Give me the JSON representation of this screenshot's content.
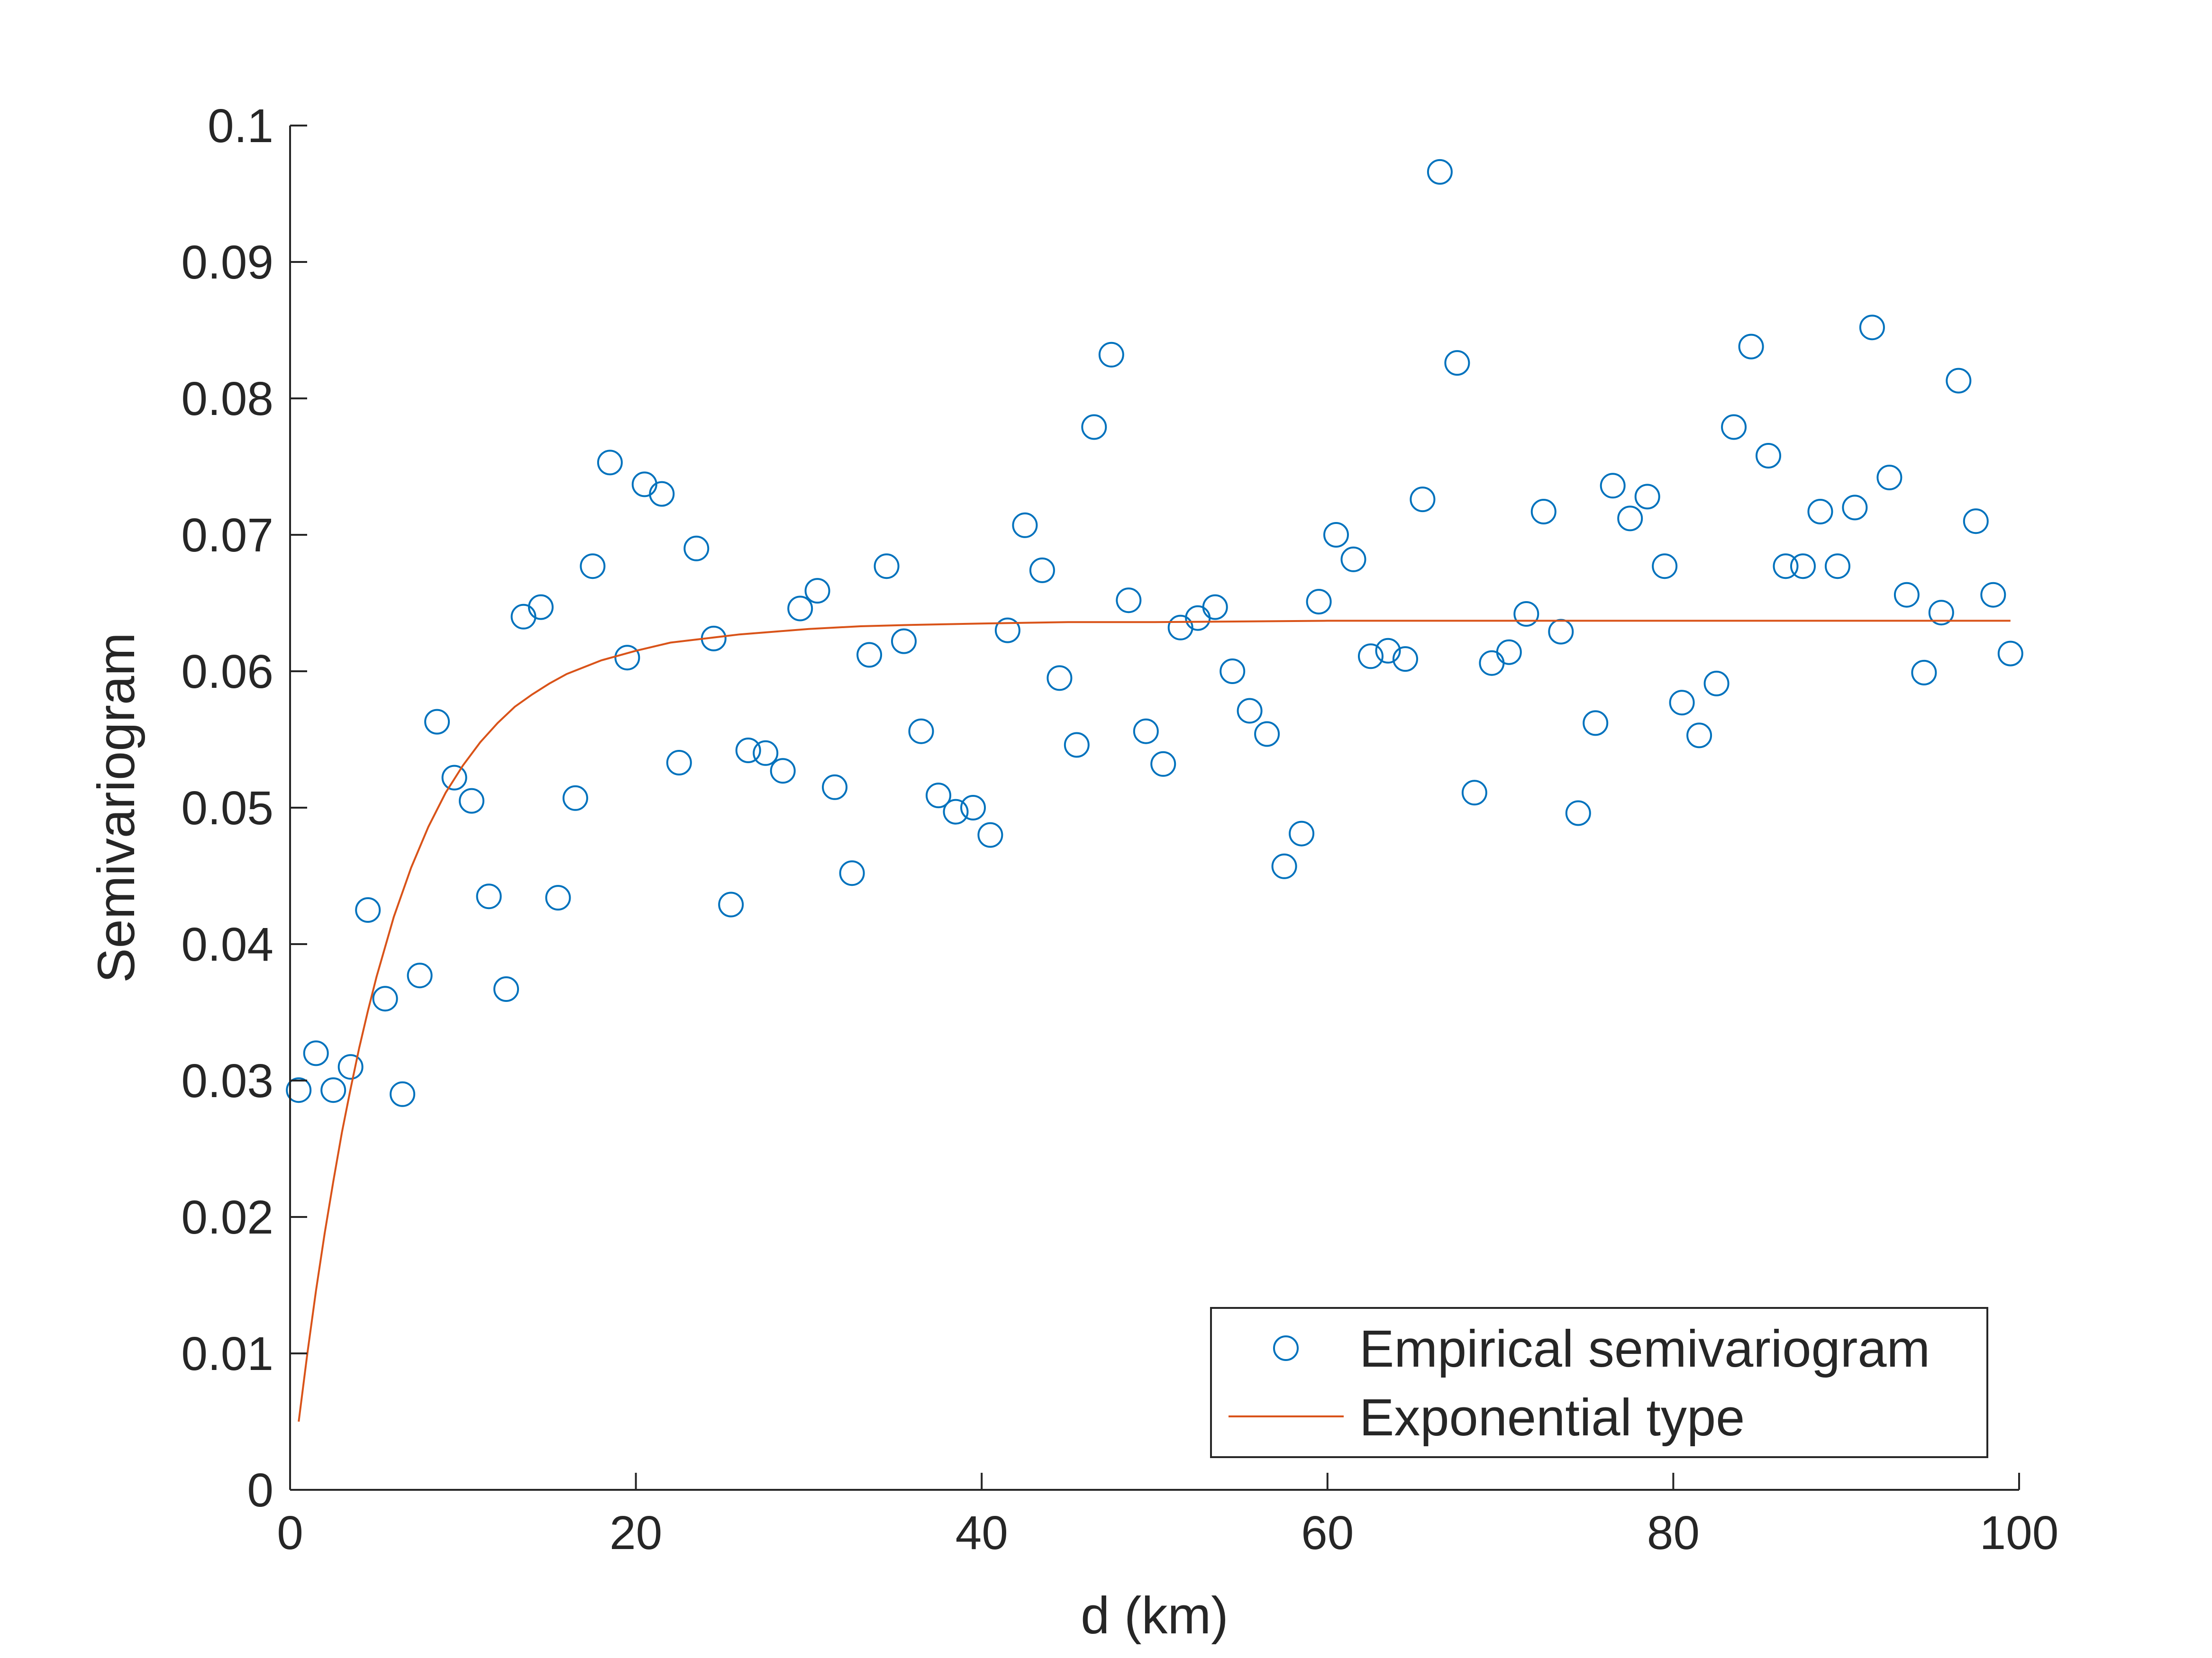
{
  "chart_data": {
    "type": "scatter",
    "title": "",
    "xlabel": "d (km)",
    "ylabel": "Semivariogram",
    "xlim": [
      0,
      100
    ],
    "ylim": [
      0,
      0.1
    ],
    "xticks": [
      "0",
      "20",
      "40",
      "60",
      "80",
      "100"
    ],
    "yticks": [
      "0",
      "0.01",
      "0.02",
      "0.03",
      "0.04",
      "0.05",
      "0.06",
      "0.07",
      "0.08",
      "0.09",
      "0.1"
    ],
    "grid": false,
    "legend_position": "bottom-right",
    "series": [
      {
        "name": "Empirical semivariogram",
        "kind": "scatter",
        "marker": "open-circle",
        "color": "#0072BD",
        "x": [
          0.5,
          1.5,
          2.5,
          3.5,
          4.5,
          5.5,
          6.5,
          7.5,
          8.5,
          9.5,
          10.5,
          11.5,
          12.5,
          13.5,
          14.5,
          15.5,
          16.5,
          17.5,
          18.5,
          19.5,
          20.5,
          21.5,
          22.5,
          23.5,
          24.5,
          25.5,
          26.5,
          27.5,
          28.5,
          29.5,
          30.5,
          31.5,
          32.5,
          33.5,
          34.5,
          35.5,
          36.5,
          37.5,
          38.5,
          39.5,
          40.5,
          41.5,
          42.5,
          43.5,
          44.5,
          45.5,
          46.5,
          47.5,
          48.5,
          49.5,
          50.5,
          51.5,
          52.5,
          53.5,
          54.5,
          55.5,
          56.5,
          57.5,
          58.5,
          59.5,
          60.5,
          61.5,
          62.5,
          63.5,
          64.5,
          65.5,
          66.5,
          67.5,
          68.5,
          69.5,
          70.5,
          71.5,
          72.5,
          73.5,
          74.5,
          75.5,
          76.5,
          77.5,
          78.5,
          79.5,
          80.5,
          81.5,
          82.5,
          83.5,
          84.5,
          85.5,
          86.5,
          87.5,
          88.5,
          89.5,
          90.5,
          91.5,
          92.5,
          93.5,
          94.5,
          95.5,
          96.5,
          97.5,
          98.5,
          99.5
        ],
        "y": [
          0.0293,
          0.032,
          0.0293,
          0.031,
          0.0425,
          0.036,
          0.029,
          0.0377,
          0.0563,
          0.0522,
          0.0505,
          0.0435,
          0.0367,
          0.064,
          0.0647,
          0.0434,
          0.0507,
          0.0677,
          0.0753,
          0.061,
          0.0737,
          0.073,
          0.0533,
          0.069,
          0.0624,
          0.0429,
          0.0542,
          0.054,
          0.0527,
          0.0646,
          0.0659,
          0.0515,
          0.0452,
          0.0612,
          0.0677,
          0.0622,
          0.0556,
          0.0509,
          0.0497,
          0.05,
          0.048,
          0.063,
          0.0707,
          0.0674,
          0.0595,
          0.0546,
          0.0779,
          0.0832,
          0.0652,
          0.0556,
          0.0532,
          0.0632,
          0.0639,
          0.0647,
          0.06,
          0.0571,
          0.0554,
          0.0457,
          0.0481,
          0.0651,
          0.07,
          0.0682,
          0.0611,
          0.0615,
          0.0609,
          0.0726,
          0.0966,
          0.0826,
          0.0511,
          0.0606,
          0.0614,
          0.0642,
          0.0717,
          0.0629,
          0.0496,
          0.0562,
          0.0736,
          0.0712,
          0.0728,
          0.0677,
          0.0577,
          0.0553,
          0.0591,
          0.0779,
          0.0838,
          0.0758,
          0.0677,
          0.0677,
          0.0717,
          0.0677,
          0.072,
          0.0852,
          0.0742,
          0.0656,
          0.0599,
          0.0643,
          0.0813,
          0.071,
          0.0656,
          0.0613
        ]
      },
      {
        "name": "Exponential type",
        "kind": "line",
        "color": "#D95319",
        "x": [
          0.5,
          1,
          1.5,
          2,
          2.5,
          3,
          3.5,
          4,
          4.5,
          5,
          6,
          7,
          8,
          9,
          10,
          11,
          12,
          13,
          14,
          15,
          16,
          17,
          18,
          20,
          22,
          24,
          26,
          28,
          30,
          33,
          36,
          40,
          45,
          50,
          60,
          70,
          80,
          90,
          99.5
        ],
        "y": [
          0.005,
          0.01,
          0.0146,
          0.0188,
          0.0226,
          0.0262,
          0.0294,
          0.0324,
          0.0351,
          0.0376,
          0.042,
          0.0456,
          0.0486,
          0.0511,
          0.0531,
          0.0548,
          0.0562,
          0.0574,
          0.0583,
          0.0591,
          0.0598,
          0.0603,
          0.0608,
          0.0615,
          0.0621,
          0.0624,
          0.0627,
          0.0629,
          0.0631,
          0.0633,
          0.0634,
          0.0635,
          0.0636,
          0.0636,
          0.0637,
          0.0637,
          0.0637,
          0.0637,
          0.0637
        ]
      }
    ]
  }
}
